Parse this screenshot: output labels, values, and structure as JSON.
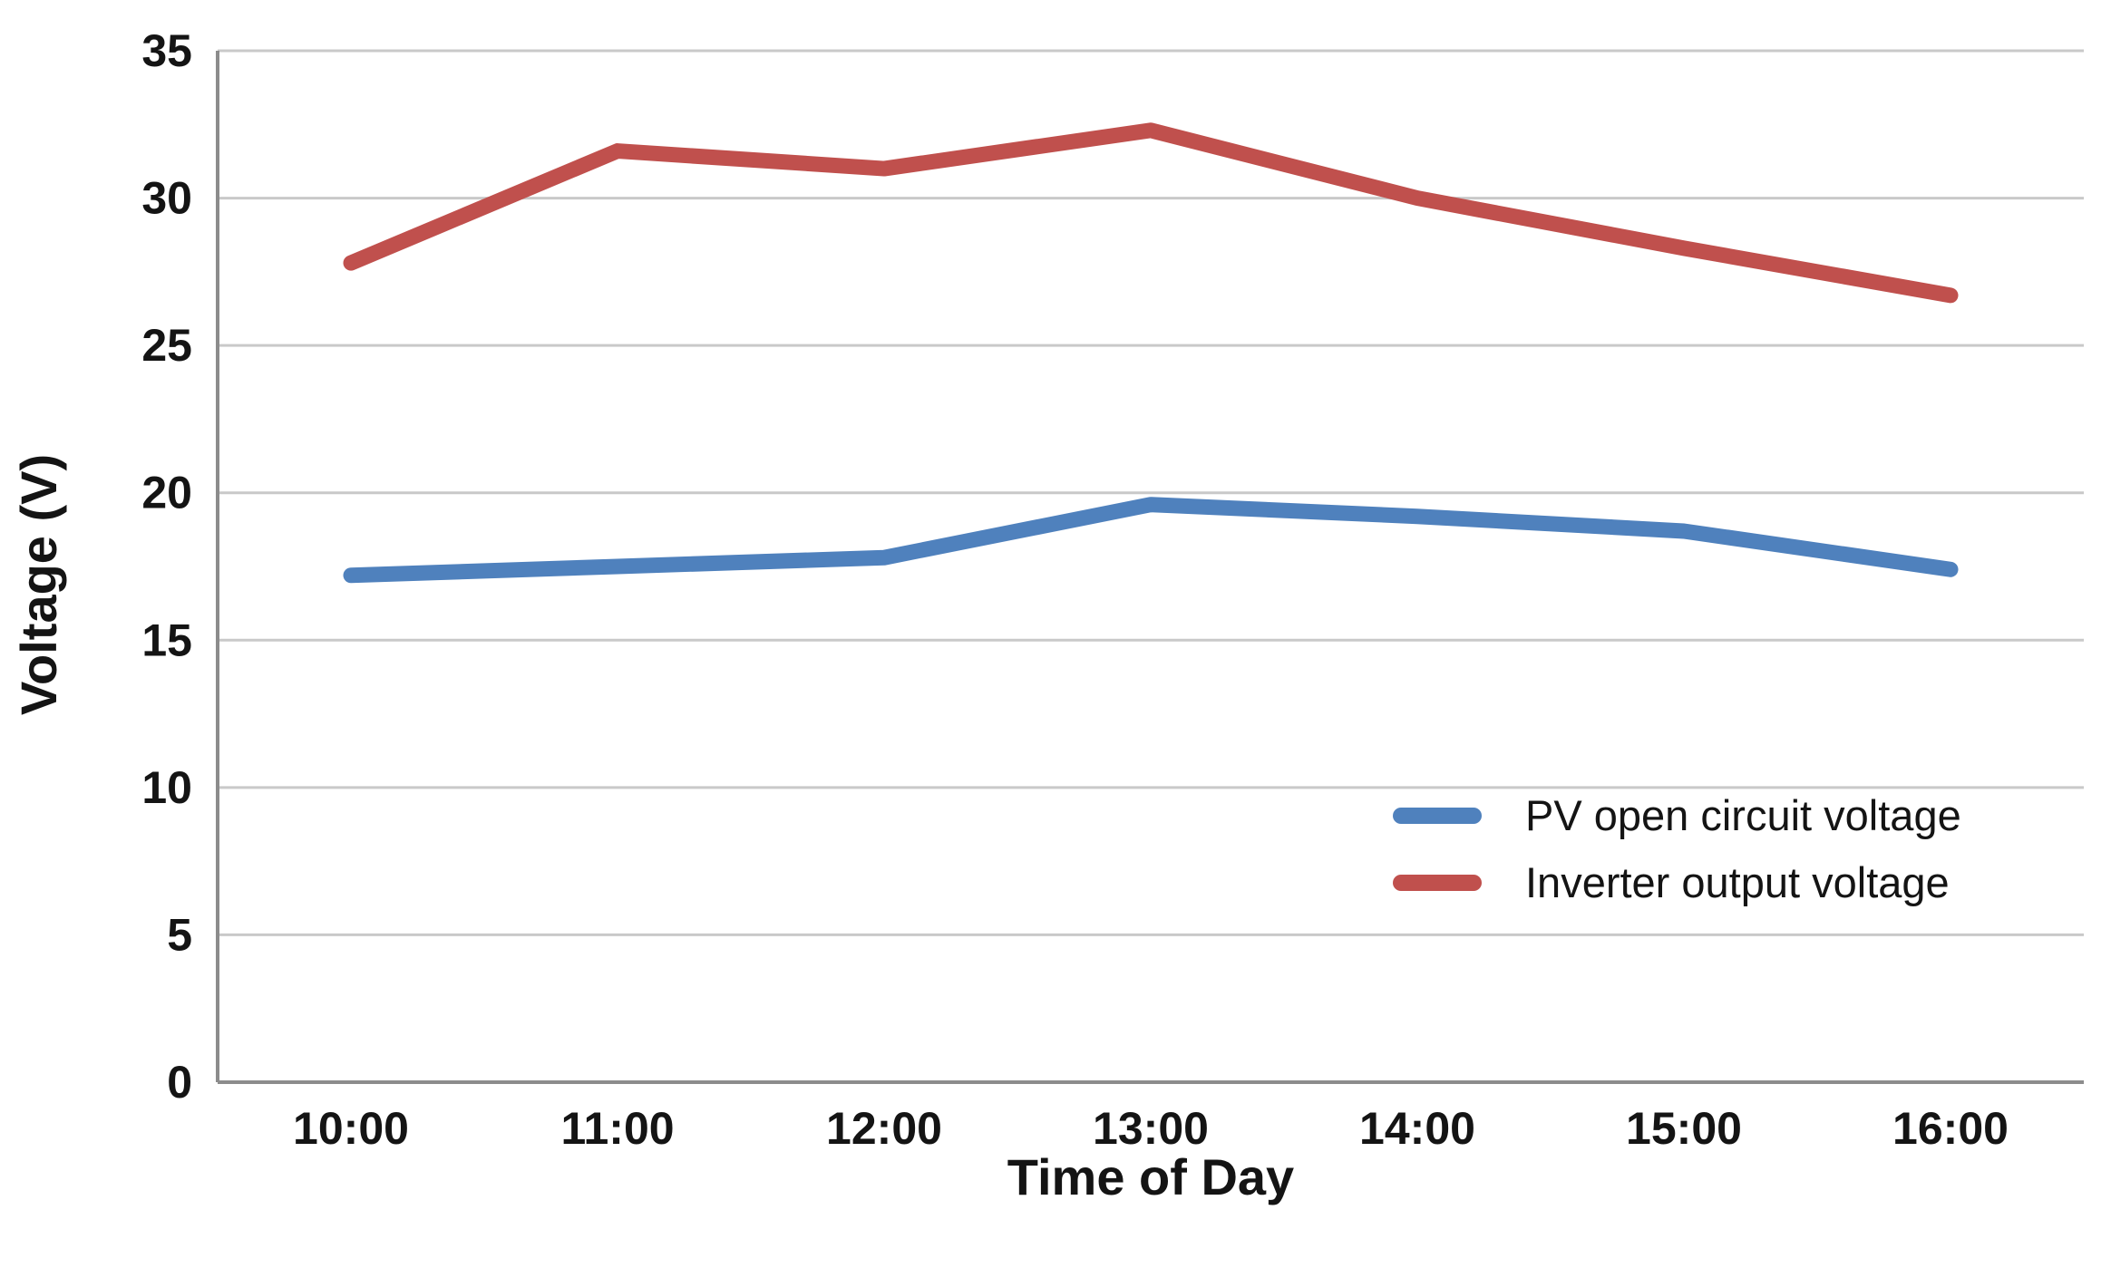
{
  "chart_data": {
    "type": "line",
    "title": "",
    "xlabel": "Time of Day",
    "ylabel": "Voltage (V)",
    "categories": [
      "10:00",
      "11:00",
      "12:00",
      "13:00",
      "14:00",
      "15:00",
      "16:00"
    ],
    "series": [
      {
        "name": "PV open circuit voltage",
        "color": "#4F81BD",
        "values": [
          17.2,
          17.5,
          17.8,
          19.6,
          19.2,
          18.7,
          17.4
        ]
      },
      {
        "name": "Inverter output voltage",
        "color": "#C0504D",
        "values": [
          27.8,
          31.6,
          31.0,
          32.3,
          30.0,
          28.3,
          26.7
        ]
      }
    ],
    "y_ticks": [
      0,
      5,
      10,
      15,
      20,
      25,
      30,
      35
    ],
    "ylim": [
      0,
      35
    ],
    "grid": true,
    "legend_position": "inside-right"
  },
  "style": {
    "gridline_color": "#C9C9C9",
    "axis_line_color": "#8C8C8C",
    "text_color": "#141414",
    "background_color": "#FFFFFF",
    "line_width": 17
  }
}
